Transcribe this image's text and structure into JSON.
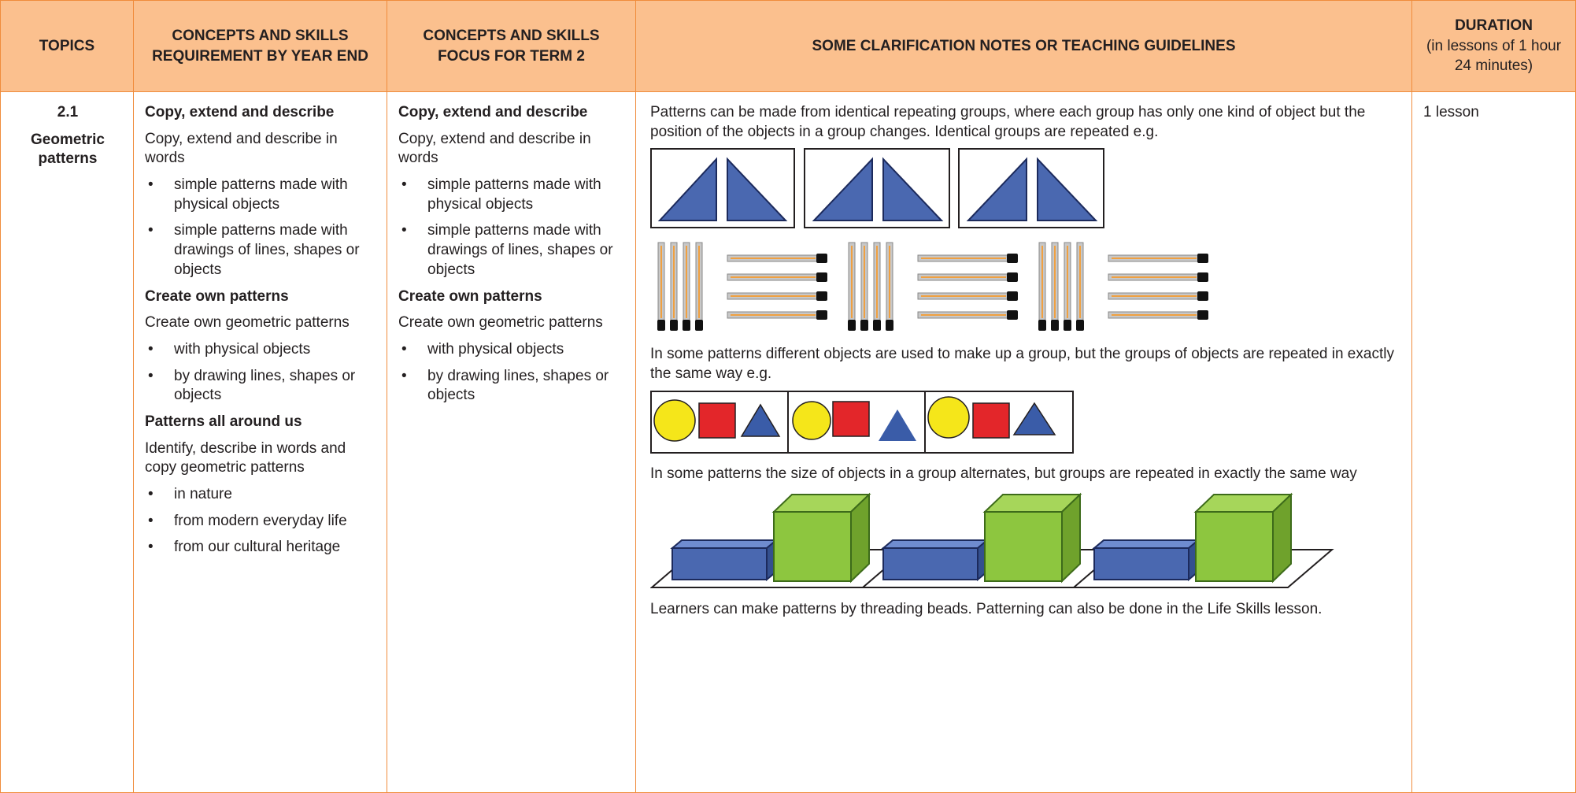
{
  "header": {
    "topics": "TOPICS",
    "year_end": "CONCEPTS AND SKILLS REQUIREMENT BY YEAR END",
    "term2": "CONCEPTS AND SKILLS FOCUS FOR TERM 2",
    "notes": "SOME CLARIFICATION NOTES OR TEACHING GUIDELINES",
    "duration": "DURATION",
    "duration_note": "(in lessons of 1 hour 24 minutes)"
  },
  "row": {
    "topic_number": "2.1",
    "topic_name": "Geometric patterns",
    "year_end": [
      {
        "heading": "Copy, extend and describe",
        "text": "Copy, extend and describe in words",
        "bullets": [
          "simple patterns made with physical objects",
          "simple patterns made with drawings of lines, shapes or objects"
        ]
      },
      {
        "heading": "Create own patterns",
        "text": "Create own geometric patterns",
        "bullets": [
          "with physical objects",
          "by drawing lines, shapes or objects"
        ]
      },
      {
        "heading": "Patterns all around us",
        "text": "Identify, describe in words and copy geometric patterns",
        "bullets": [
          "in nature",
          "from modern everyday life",
          "from our cultural heritage"
        ]
      }
    ],
    "term2": [
      {
        "heading": "Copy, extend and describe",
        "text": "Copy, extend and describe in words",
        "bullets": [
          "simple patterns made with physical objects",
          "simple patterns made with drawings of lines, shapes or objects"
        ]
      },
      {
        "heading": "Create own patterns",
        "text": "Create own geometric patterns",
        "bullets": [
          "with physical objects",
          "by drawing lines, shapes or objects"
        ]
      }
    ],
    "notes": [
      "Patterns can be made from identical repeating groups, where each group has only one kind of object but the position of the objects in a group changes. Identical groups are repeated e.g.",
      "In some patterns different objects are used to make up a group, but the groups of objects are repeated in exactly the same way e.g.",
      "In some patterns the size of objects in a group alternates, but groups are repeated in exactly the same way",
      "Learners can make patterns by threading beads. Patterning can also be done in the Life Skills lesson."
    ],
    "duration": "1 lesson"
  }
}
